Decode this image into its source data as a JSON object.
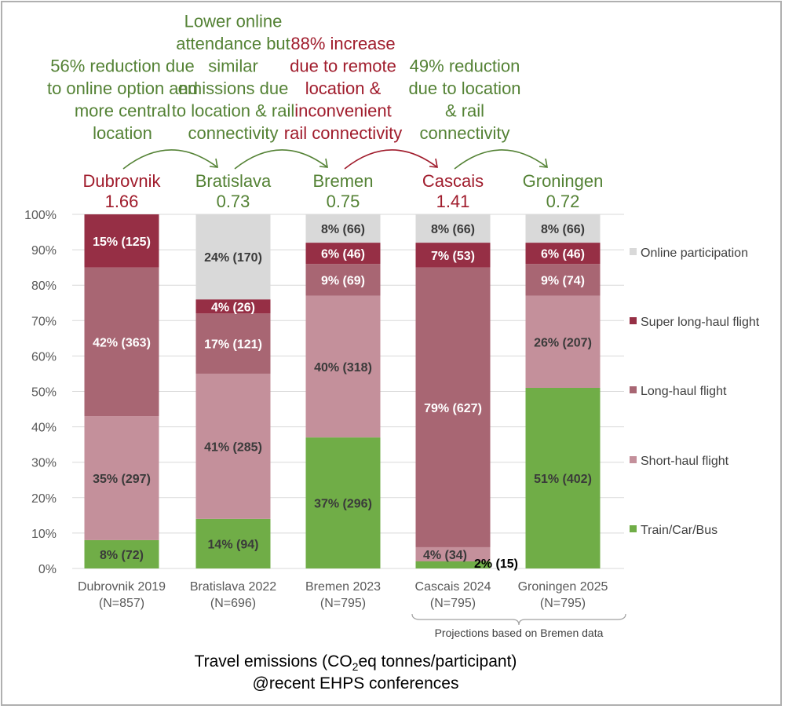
{
  "chart_data": {
    "type": "bar",
    "stacked": true,
    "normalized_percent": true,
    "title": "Travel emissions (CO2eq tonnes/participant) @recent EHPS conferences",
    "caption_line1_parts": [
      "Travel emissions (CO",
      "2",
      "eq tonnes/participant)"
    ],
    "caption_line2": "@recent EHPS conferences",
    "xlabel": "",
    "ylabel": "",
    "ylim": [
      0,
      100
    ],
    "yticks": [
      "0%",
      "10%",
      "20%",
      "30%",
      "40%",
      "50%",
      "60%",
      "70%",
      "80%",
      "90%",
      "100%"
    ],
    "grid": true,
    "legend_position": "right",
    "categories": [
      {
        "name": "Dubrovnik 2019",
        "n": "(N=857)"
      },
      {
        "name": "Bratislava 2022",
        "n": "(N=696)"
      },
      {
        "name": "Bremen 2023",
        "n": "(N=795)"
      },
      {
        "name": "Cascais 2024",
        "n": "(N=795)"
      },
      {
        "name": "Groningen 2025",
        "n": "(N=795)"
      }
    ],
    "series": [
      {
        "name": "Train/Car/Bus",
        "color": "#70ad47",
        "label_color": "#3a3a3a",
        "values": [
          8,
          14,
          37,
          2,
          51
        ],
        "labels": [
          "8% (72)",
          "14% (94)",
          "37% (296)",
          "2% (15)",
          "51% (402)"
        ]
      },
      {
        "name": "Short-haul flight",
        "color": "#c4909b",
        "label_color": "#3a3a3a",
        "values": [
          35,
          41,
          40,
          4,
          26
        ],
        "labels": [
          "35% (297)",
          "41% (285)",
          "40% (318)",
          "4% (34)",
          "26% (207)"
        ]
      },
      {
        "name": "Long-haul flight",
        "color": "#a86673",
        "label_color": "#ffffff",
        "values": [
          42,
          17,
          9,
          79,
          9
        ],
        "labels": [
          "42% (363)",
          "17% (121)",
          "9% (69)",
          "79% (627)",
          "9% (74)"
        ]
      },
      {
        "name": "Super long-haul flight",
        "color": "#962f45",
        "label_color": "#ffffff",
        "values": [
          15,
          4,
          6,
          7,
          6
        ],
        "labels": [
          "15% (125)",
          "4% (26)",
          "6% (46)",
          "7% (53)",
          "6% (46)"
        ]
      },
      {
        "name": "Online participation",
        "color": "#d9d9d9",
        "label_color": "#3a3a3a",
        "values": [
          0,
          24,
          8,
          8,
          8
        ],
        "labels": [
          "",
          "24% (170)",
          "8% (66)",
          "8% (66)",
          "8% (66)"
        ]
      }
    ],
    "legend_order": [
      "Online participation",
      "Super long-haul flight",
      "Long-haul flight",
      "Short-haul flight",
      "Train/Car/Bus"
    ],
    "bar_headers": [
      {
        "city": "Dubrovnik",
        "value": "1.66",
        "color": "#a01c2c"
      },
      {
        "city": "Bratislava",
        "value": "0.73",
        "color": "#548235"
      },
      {
        "city": "Bremen",
        "value": "0.75",
        "color": "#548235"
      },
      {
        "city": "Cascais",
        "value": "1.41",
        "color": "#a01c2c"
      },
      {
        "city": "Groningen",
        "value": "0.72",
        "color": "#548235"
      }
    ],
    "annotations": [
      {
        "lines": [
          "56% reduction due",
          "to online option and",
          "more central",
          "location"
        ],
        "color": "#548235",
        "from": 0,
        "to": 1
      },
      {
        "lines": [
          "Lower online",
          "attendance but",
          "similar",
          "emissions due",
          "to location & rail",
          "connectivity"
        ],
        "color": "#548235",
        "from": 1,
        "to": 2
      },
      {
        "lines": [
          "88% increase",
          "due to remote",
          "location &",
          "inconvenient",
          "rail connectivity"
        ],
        "color": "#a01c2c",
        "from": 2,
        "to": 3
      },
      {
        "lines": [
          "49% reduction",
          "due to location",
          "& rail",
          "connectivity"
        ],
        "color": "#548235",
        "from": 3,
        "to": 4
      }
    ],
    "projection_note": "Projections based on Bremen data"
  }
}
